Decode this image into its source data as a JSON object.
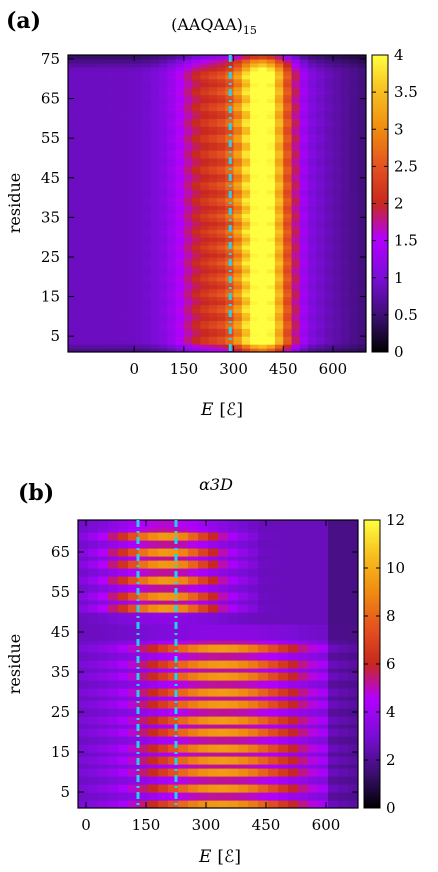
{
  "chart_data": [
    {
      "type": "heatmap",
      "panel_label": "(a)",
      "title": "(AAQAA)15",
      "title_main": "(AAQAA)",
      "title_sub": "15",
      "xlabel_var": "E",
      "xlabel_unit": "[ℰ]",
      "ylabel": "residue",
      "x_ticks": [
        0,
        150,
        300,
        450,
        600
      ],
      "y_ticks": [
        5,
        15,
        25,
        35,
        45,
        55,
        65,
        75
      ],
      "xlim": [
        -200,
        700
      ],
      "ylim": [
        1,
        76
      ],
      "colorbar_ticks": [
        "0",
        "0.5",
        "1",
        "1.5",
        "2",
        "2.5",
        "3",
        "3.5",
        "4"
      ],
      "zlim": [
        0,
        4
      ],
      "vlines": [
        290
      ],
      "vline_color": "#22d3ee",
      "color_scale": [
        "#000000",
        "#3b0f70",
        "#7a0dd6",
        "#b300ff",
        "#c8281e",
        "#e35020",
        "#f08b10",
        "#f7c020",
        "#ffff40"
      ],
      "description_note": ""
    },
    {
      "type": "heatmap",
      "panel_label": "(b)",
      "title": "α3D",
      "xlabel_var": "E",
      "xlabel_unit": "[ℰ]",
      "ylabel": "residue",
      "x_ticks": [
        0,
        150,
        300,
        450,
        600
      ],
      "y_ticks": [
        5,
        15,
        25,
        35,
        45,
        55,
        65
      ],
      "xlim": [
        -20,
        680
      ],
      "ylim": [
        1,
        73
      ],
      "colorbar_ticks": [
        "0",
        "2",
        "4",
        "6",
        "8",
        "10",
        "12"
      ],
      "zlim": [
        0,
        12
      ],
      "vlines": [
        130,
        225
      ],
      "vline_color": "#22d3ee",
      "high_residues": [
        2,
        6,
        10,
        13,
        16,
        20,
        23,
        27,
        30,
        34,
        37,
        41,
        51,
        54,
        58,
        62,
        65,
        69
      ],
      "color_scale": [
        "#000000",
        "#3b0f70",
        "#7a0dd6",
        "#b300ff",
        "#c8281e",
        "#e35020",
        "#f08b10",
        "#f7c020",
        "#ffff40"
      ]
    }
  ]
}
